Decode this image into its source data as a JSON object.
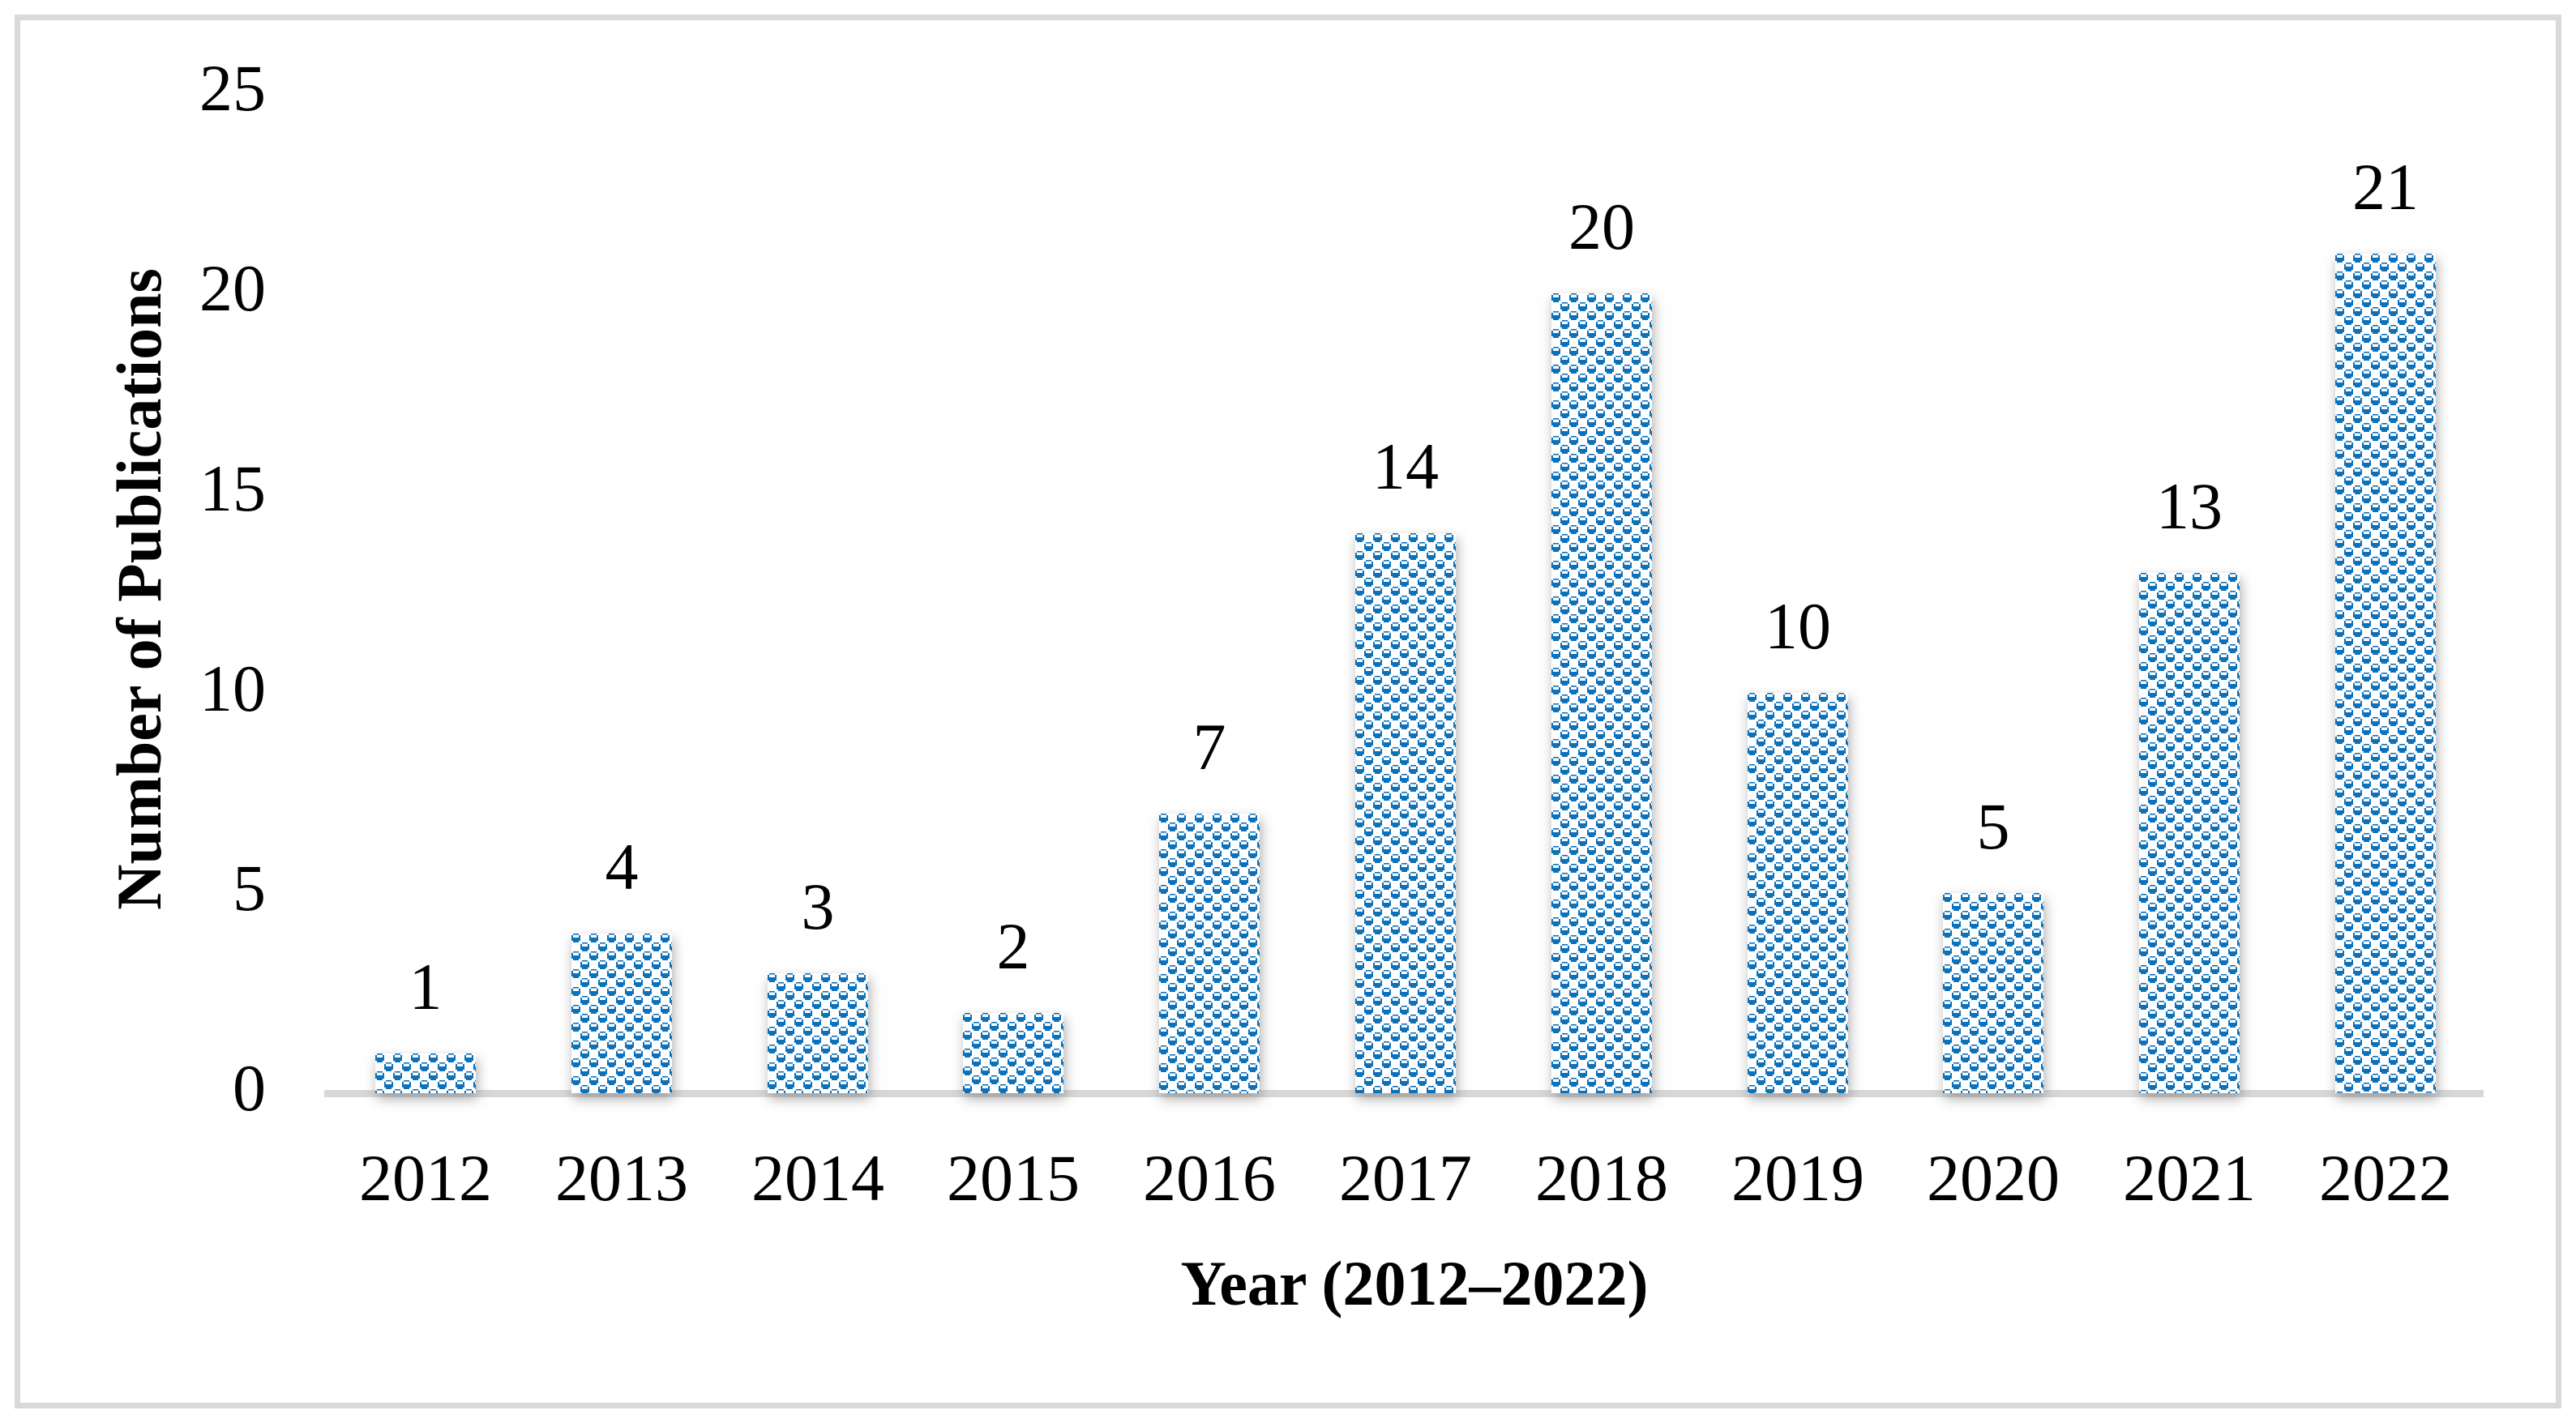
{
  "figure": {
    "background_color": "#ffffff",
    "frame_border_color": "#d9d9d9"
  },
  "chart_data": {
    "type": "bar",
    "title": "",
    "categories": [
      "2012",
      "2013",
      "2014",
      "2015",
      "2016",
      "2017",
      "2018",
      "2019",
      "2020",
      "2021",
      "2022"
    ],
    "values": [
      1,
      4,
      3,
      2,
      7,
      14,
      20,
      10,
      5,
      13,
      21
    ],
    "data_labels": [
      "1",
      "4",
      "3",
      "2",
      "7",
      "14",
      "20",
      "10",
      "5",
      "13",
      "21"
    ],
    "xlabel": "Year (2012–2022)",
    "ylabel": "Number of Publications",
    "ylim": [
      0,
      25
    ],
    "yticks": [
      "0",
      "5",
      "10",
      "15",
      "20",
      "25"
    ],
    "ytick_values": [
      0,
      5,
      10,
      15,
      20,
      25
    ],
    "grid": false,
    "legend": false,
    "bar_fill_color": "#0d71ba",
    "bar_pattern": "blue-white checkerboard with white notches",
    "axis_line_color": "#d8d8d8",
    "data_label_color": "#000000"
  }
}
